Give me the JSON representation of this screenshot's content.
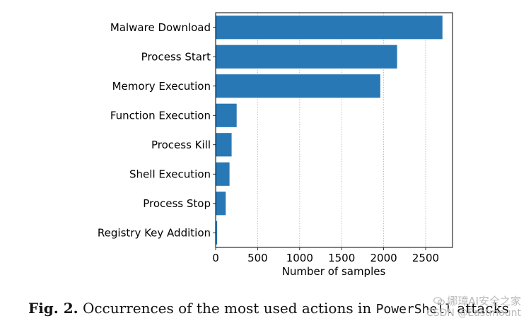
{
  "chart_data": {
    "type": "bar",
    "orientation": "horizontal",
    "categories": [
      "Malware Download",
      "Process Start",
      "Memory Execution",
      "Function Execution",
      "Process Kill",
      "Shell Execution",
      "Process Stop",
      "Registry Key Addition"
    ],
    "values": [
      2700,
      2160,
      1960,
      250,
      190,
      165,
      120,
      18
    ],
    "xlabel": "Number of samples",
    "ylabel": "",
    "xlim": [
      0,
      2820
    ],
    "xticks": [
      0,
      500,
      1000,
      1500,
      2000,
      2500
    ],
    "bar_color": "#2878b5",
    "grid": "vertical dotted"
  },
  "caption": {
    "label": "Fig. 2.",
    "text": "Occurrences of the most used actions in",
    "mono_text": "PowerShell",
    "tail": "attacks"
  },
  "watermark": {
    "line1": "娜璋AI安全之家",
    "line2": "CSDN @Eastmount",
    "icon": "wechat-icon"
  }
}
